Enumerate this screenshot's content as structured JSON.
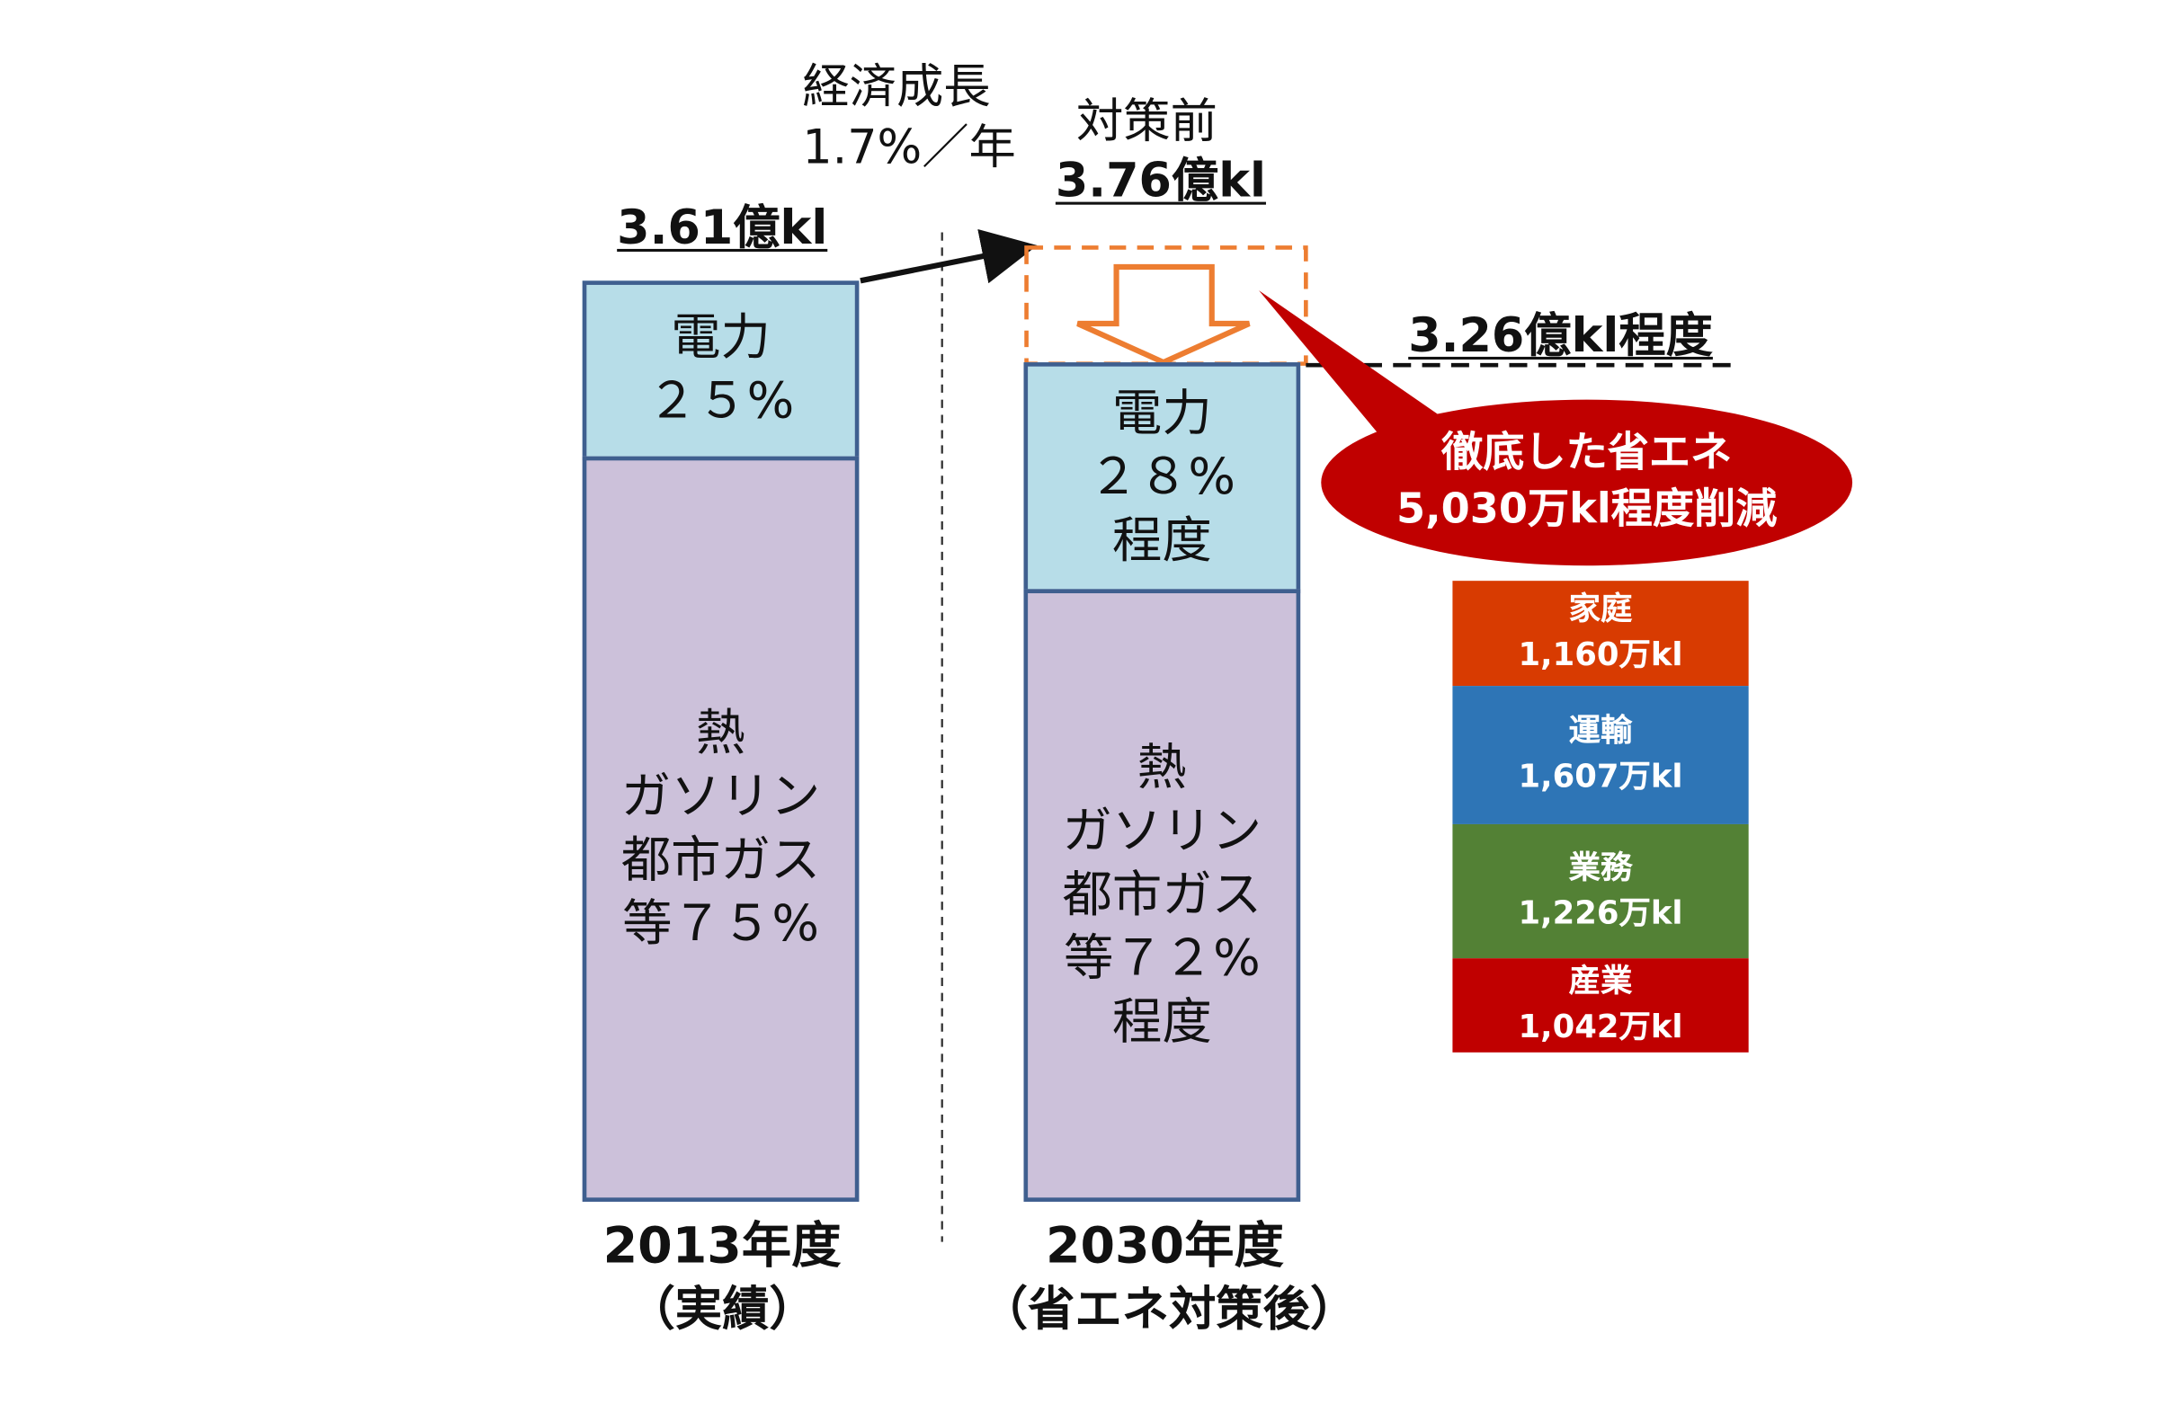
{
  "chart_data": {
    "type": "bar",
    "unit": "億kl",
    "categories": [
      {
        "year": "2013年度",
        "note": "（実績）"
      },
      {
        "year": "2030年度",
        "note": "（省エネ対策後）"
      }
    ],
    "bars": [
      {
        "total_label": "3.61億kl",
        "total": 3.61,
        "segments": [
          {
            "name": "電力",
            "share_label": "２５%",
            "share": 25,
            "color": "#b7dde8"
          },
          {
            "name": "熱ガソリン都市ガス等",
            "share": 75,
            "color": "#ccc1da",
            "lines": [
              "熱",
              "ガソリン",
              "都市ガス",
              "等７５%"
            ]
          }
        ]
      },
      {
        "total_label": "3.26億kl程度",
        "total": 3.26,
        "segments": [
          {
            "name": "電力",
            "share_label": "２８%",
            "qualifier": "程度",
            "share": 28,
            "color": "#b7dde8"
          },
          {
            "name": "熱ガソリン都市ガス等",
            "share": 72,
            "color": "#ccc1da",
            "lines": [
              "熱",
              "ガソリン",
              "都市ガス",
              "等７２%",
              "程度"
            ]
          }
        ]
      }
    ],
    "growth_label": [
      "経済成長",
      "1.7%／年"
    ],
    "before_measures": {
      "label": "対策前",
      "value_label": "3.76億kl",
      "value": 3.76
    },
    "callout": {
      "lines": [
        "徹底した省エネ",
        "5,030万kl程度削減"
      ],
      "value": 5030,
      "unit": "万kl",
      "color": "#c00000"
    },
    "sectors": [
      {
        "name": "家庭",
        "value_label": "1,160万kl",
        "value": 1160,
        "color": "#d83b01"
      },
      {
        "name": "運輸",
        "value_label": "1,607万kl",
        "value": 1607,
        "color": "#2e75b6"
      },
      {
        "name": "業務",
        "value_label": "1,226万kl",
        "value": 1226,
        "color": "#538135"
      },
      {
        "name": "産業",
        "value_label": "1,042万kl",
        "value": 1042,
        "color": "#c00000"
      }
    ],
    "colors": {
      "bar_border": "#3f5f8f",
      "arrow_orange": "#ed7d31",
      "callout_red": "#c00000"
    }
  }
}
